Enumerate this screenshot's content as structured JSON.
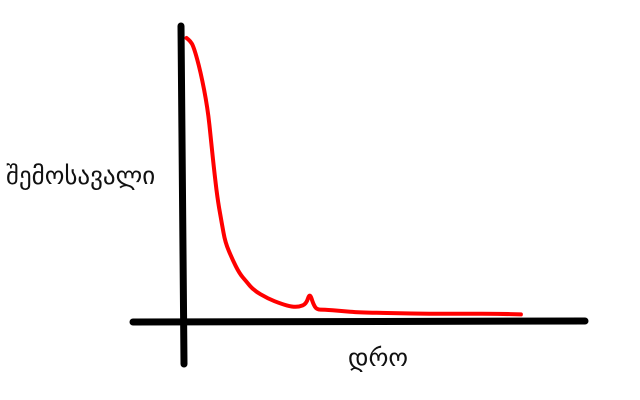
{
  "colors": {
    "axis": "#000000",
    "curve": "#ff0000",
    "background": "#ffffff"
  },
  "chart_data": {
    "type": "line",
    "title": "",
    "xlabel": "დრო",
    "ylabel": "შემოსავალი",
    "grid": false,
    "legend": "none",
    "xlim": [
      0,
      100
    ],
    "ylim": [
      0,
      100
    ],
    "series": [
      {
        "x": [
          1,
          2,
          3,
          5,
          7,
          8,
          9,
          10,
          11,
          12,
          14,
          16,
          18,
          20,
          24,
          28,
          31,
          33,
          35,
          36,
          37,
          38,
          40,
          45,
          50,
          60,
          70,
          80,
          90,
          96
        ],
        "y": [
          100,
          99,
          97,
          88,
          75,
          63,
          51,
          41,
          34,
          27,
          21,
          16,
          13,
          10,
          7,
          5,
          4,
          4,
          5,
          9,
          5,
          3,
          3,
          2.5,
          2,
          1.7,
          1.5,
          1.5,
          1.5,
          1.3
        ]
      }
    ]
  }
}
